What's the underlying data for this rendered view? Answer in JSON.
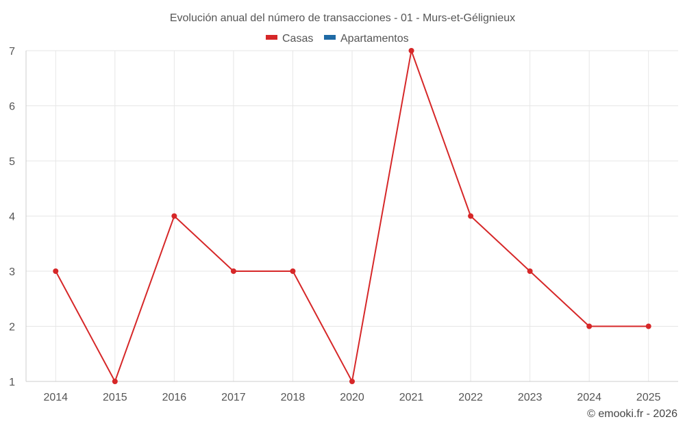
{
  "chart_data": {
    "type": "line",
    "title": "Evolución anual del número de transacciones - 01 - Murs-et-Gélignieux",
    "legend": [
      {
        "name": "Casas",
        "color": "#d62728"
      },
      {
        "name": "Apartamentos",
        "color": "#1f6aa5"
      }
    ],
    "legend_position": "top-center",
    "x": [
      "2014",
      "2015",
      "2016",
      "2017",
      "2018",
      "2020",
      "2021",
      "2022",
      "2023",
      "2024",
      "2025"
    ],
    "series": [
      {
        "name": "Casas",
        "color": "#d62728",
        "values": [
          3,
          1,
          4,
          3,
          3,
          1,
          7,
          4,
          3,
          2,
          2
        ]
      }
    ],
    "ylim": [
      1,
      7
    ],
    "yticks": [
      "1",
      "2",
      "3",
      "4",
      "5",
      "6",
      "7"
    ],
    "grid": true,
    "xlabel": "",
    "ylabel": ""
  },
  "credit": "© emooki.fr - 2026"
}
